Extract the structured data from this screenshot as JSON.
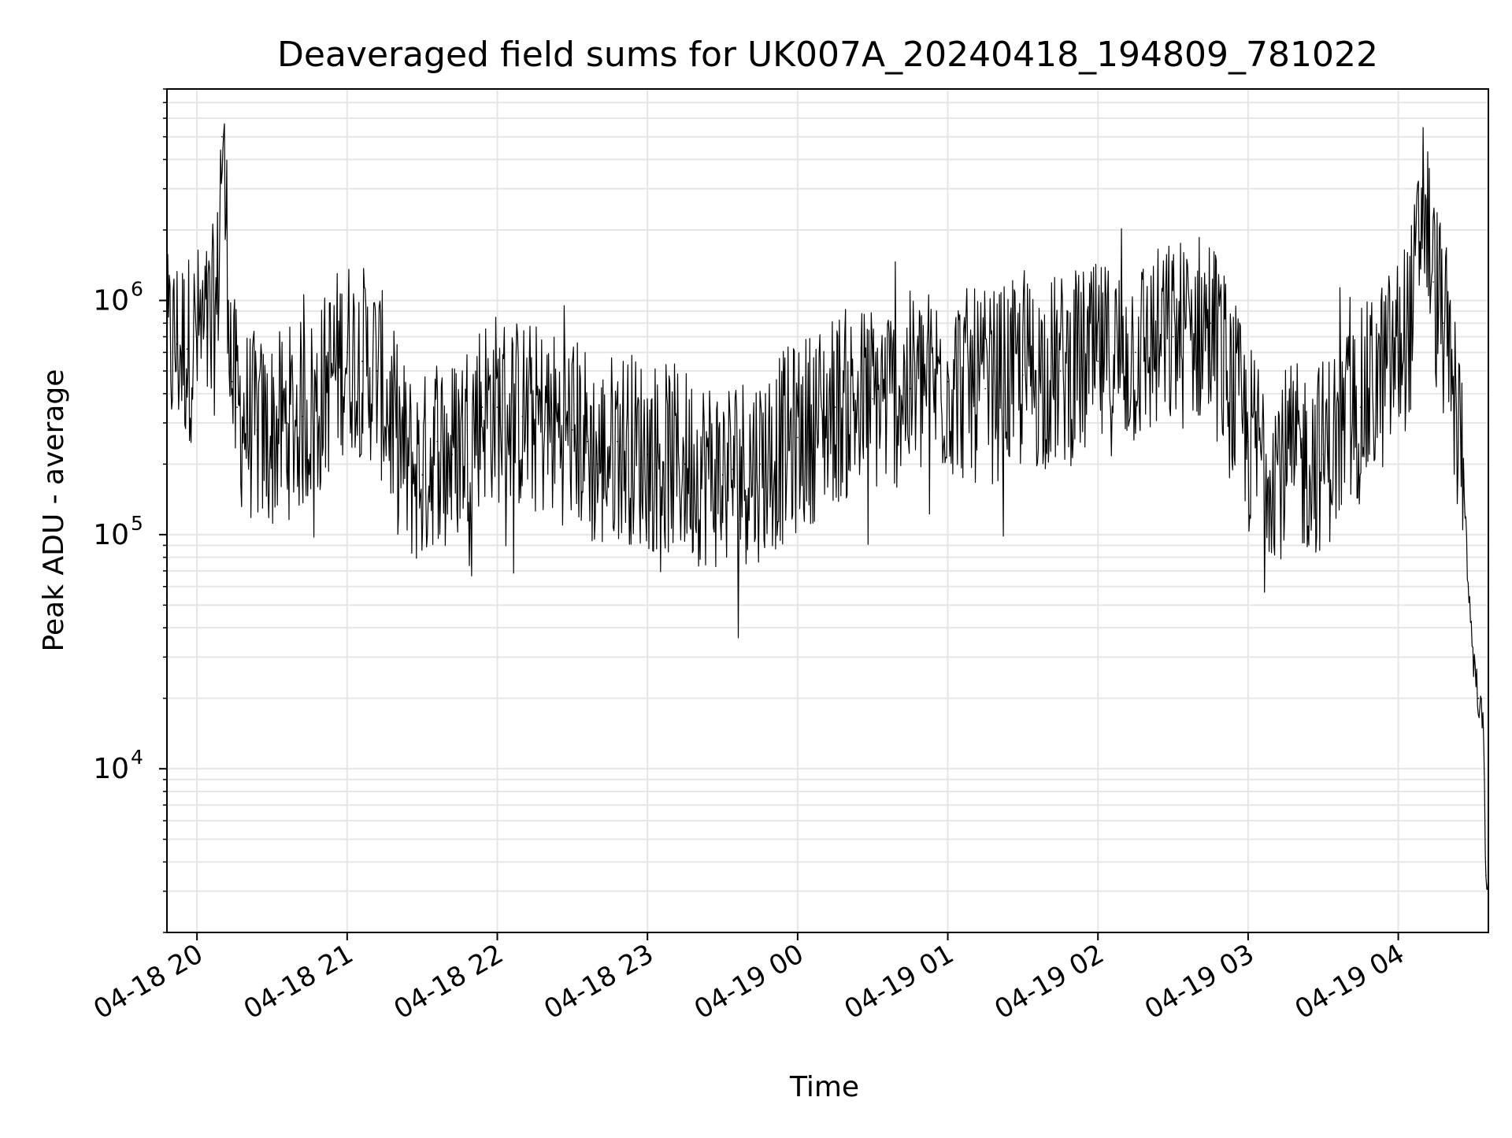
{
  "chart_data": {
    "type": "line",
    "title": "Deaveraged field sums for UK007A_20240418_194809_781022",
    "xlabel": "Time",
    "ylabel": "Peak ADU - average",
    "y_scale": "log",
    "ylim": [
      2000,
      8000000
    ],
    "xlim": [
      "2024-04-18 19:48",
      "2024-04-19 04:36"
    ],
    "x_ticks": [
      {
        "t": "2024-04-18 20:00",
        "label": "04-18 20"
      },
      {
        "t": "2024-04-18 21:00",
        "label": "04-18 21"
      },
      {
        "t": "2024-04-18 22:00",
        "label": "04-18 22"
      },
      {
        "t": "2024-04-18 23:00",
        "label": "04-18 23"
      },
      {
        "t": "2024-04-19 00:00",
        "label": "04-19 00"
      },
      {
        "t": "2024-04-19 01:00",
        "label": "04-19 01"
      },
      {
        "t": "2024-04-19 02:00",
        "label": "04-19 02"
      },
      {
        "t": "2024-04-19 03:00",
        "label": "04-19 03"
      },
      {
        "t": "2024-04-19 04:00",
        "label": "04-19 04"
      }
    ],
    "y_ticks": [
      {
        "value": 10000,
        "base": "10",
        "exp": "4"
      },
      {
        "value": 100000,
        "base": "10",
        "exp": "5"
      },
      {
        "value": 1000000,
        "base": "10",
        "exp": "6"
      }
    ],
    "grid": true,
    "grid_minor": true,
    "line_color": "#000000",
    "grid_color": "#e6e6e6",
    "series": [
      {
        "x": [
          "2024-04-18 19:48",
          "2024-04-18 19:52",
          "2024-04-18 19:56",
          "2024-04-18 20:00",
          "2024-04-18 20:04",
          "2024-04-18 20:08",
          "2024-04-18 20:10",
          "2024-04-18 20:12",
          "2024-04-18 20:14",
          "2024-04-18 20:16",
          "2024-04-18 20:20",
          "2024-04-18 20:24",
          "2024-04-18 20:28",
          "2024-04-18 20:30",
          "2024-04-18 20:36",
          "2024-04-18 20:42",
          "2024-04-18 20:48",
          "2024-04-18 20:54",
          "2024-04-18 21:00",
          "2024-04-18 21:06",
          "2024-04-18 21:12",
          "2024-04-18 21:18",
          "2024-04-18 21:24",
          "2024-04-18 21:30",
          "2024-04-18 21:36",
          "2024-04-18 21:42",
          "2024-04-18 21:48",
          "2024-04-18 21:54",
          "2024-04-18 22:00",
          "2024-04-18 22:10",
          "2024-04-18 22:20",
          "2024-04-18 22:30",
          "2024-04-18 22:36",
          "2024-04-18 22:40",
          "2024-04-18 22:48",
          "2024-04-18 23:00",
          "2024-04-18 23:15",
          "2024-04-18 23:30",
          "2024-04-18 23:34",
          "2024-04-18 23:45",
          "2024-04-19 00:00",
          "2024-04-19 00:15",
          "2024-04-19 00:30",
          "2024-04-19 00:45",
          "2024-04-19 01:00",
          "2024-04-19 01:15",
          "2024-04-19 01:30",
          "2024-04-19 01:45",
          "2024-04-19 02:00",
          "2024-04-19 02:15",
          "2024-04-19 02:30",
          "2024-04-19 02:45",
          "2024-04-19 03:00",
          "2024-04-19 03:15",
          "2024-04-19 03:30",
          "2024-04-19 03:45",
          "2024-04-19 04:00",
          "2024-04-19 04:06",
          "2024-04-19 04:10",
          "2024-04-19 04:14",
          "2024-04-19 04:18",
          "2024-04-19 04:22",
          "2024-04-19 04:26",
          "2024-04-19 04:28",
          "2024-04-19 04:30",
          "2024-04-19 04:32",
          "2024-04-19 04:34",
          "2024-04-19 04:35"
        ],
        "y": [
          600000,
          650000,
          620000,
          680000,
          700000,
          900000,
          5000000,
          1800000,
          450000,
          350000,
          300000,
          280000,
          260000,
          270000,
          300000,
          320000,
          350000,
          500000,
          600000,
          550000,
          500000,
          300000,
          200000,
          180000,
          250000,
          220000,
          280000,
          350000,
          350000,
          320000,
          300000,
          280000,
          250000,
          200000,
          250000,
          220000,
          200000,
          180000,
          190000,
          200000,
          260000,
          350000,
          380000,
          420000,
          450000,
          420000,
          480000,
          500000,
          550000,
          600000,
          700000,
          800000,
          250000,
          200000,
          220000,
          350000,
          600000,
          900000,
          3000000,
          1200000,
          800000,
          400000,
          200000,
          60000,
          30000,
          20000,
          15000,
          3500
        ]
      }
    ]
  }
}
